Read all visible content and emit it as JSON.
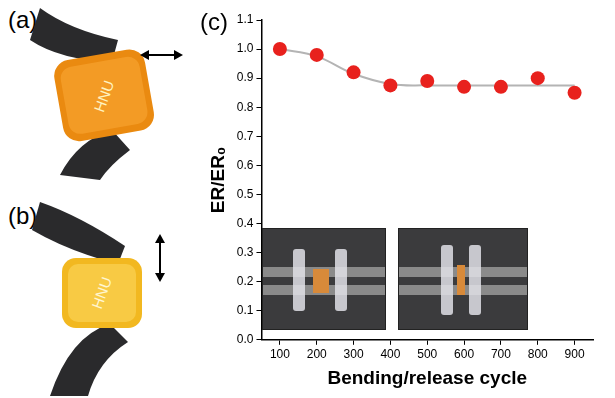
{
  "panels": [
    {
      "label": "(a)",
      "text": "HNU"
    },
    {
      "label": "(b)",
      "text": "HNU"
    }
  ],
  "chart_panel_label": "(c)",
  "chart_data": {
    "type": "line",
    "x_label": "Bending/release cycle",
    "y_label": "ER/ER₀",
    "categories": [
      "100",
      "200",
      "300",
      "400",
      "500",
      "600",
      "700",
      "800",
      "900"
    ],
    "series": [
      {
        "type": "scatter",
        "color": "#e8211d",
        "marker": "circle",
        "line_style": "none",
        "values": [
          1.0,
          0.98,
          0.92,
          0.875,
          0.89,
          0.87,
          0.87,
          0.9,
          0.85
        ]
      },
      {
        "type": "line",
        "color": "#b4b4b4",
        "marker": "none",
        "line_style": "solid",
        "values": [
          1.0,
          0.975,
          0.915,
          0.88,
          0.875,
          0.875,
          0.875,
          0.875,
          0.875
        ]
      }
    ],
    "ylim": [
      0,
      1.1
    ],
    "yticks": [
      {
        "value": 0,
        "label": "0.0"
      },
      0.1,
      0.2,
      0.3,
      0.4,
      0.5,
      0.6,
      0.7,
      0.8,
      0.9,
      {
        "value": 1,
        "label": "1.0"
      },
      1.1
    ],
    "grid": false
  }
}
